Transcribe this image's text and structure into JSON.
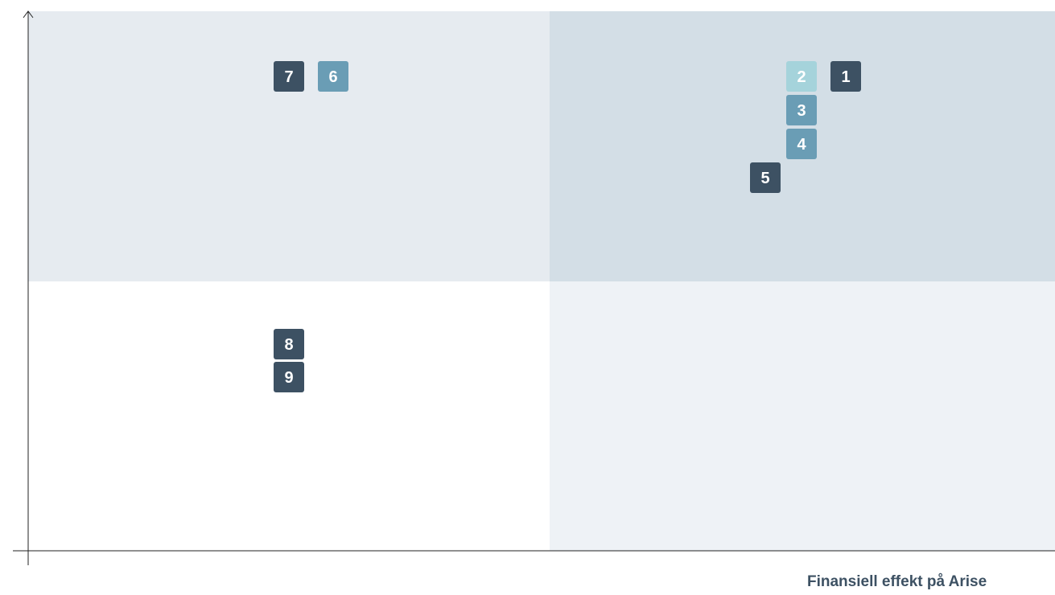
{
  "items": [
    {
      "label": "1",
      "color": "#3d5163"
    },
    {
      "label": "2",
      "color": "#a5d3db"
    },
    {
      "label": "3",
      "color": "#6a9db5"
    },
    {
      "label": "4",
      "color": "#6a9db5"
    },
    {
      "label": "5",
      "color": "#3d5163"
    },
    {
      "label": "6",
      "color": "#6a9db5"
    },
    {
      "label": "7",
      "color": "#3d5163"
    },
    {
      "label": "8",
      "color": "#3d5163"
    },
    {
      "label": "9",
      "color": "#3d5163"
    }
  ],
  "x_axis_label": "Finansiell effekt på Arise"
}
